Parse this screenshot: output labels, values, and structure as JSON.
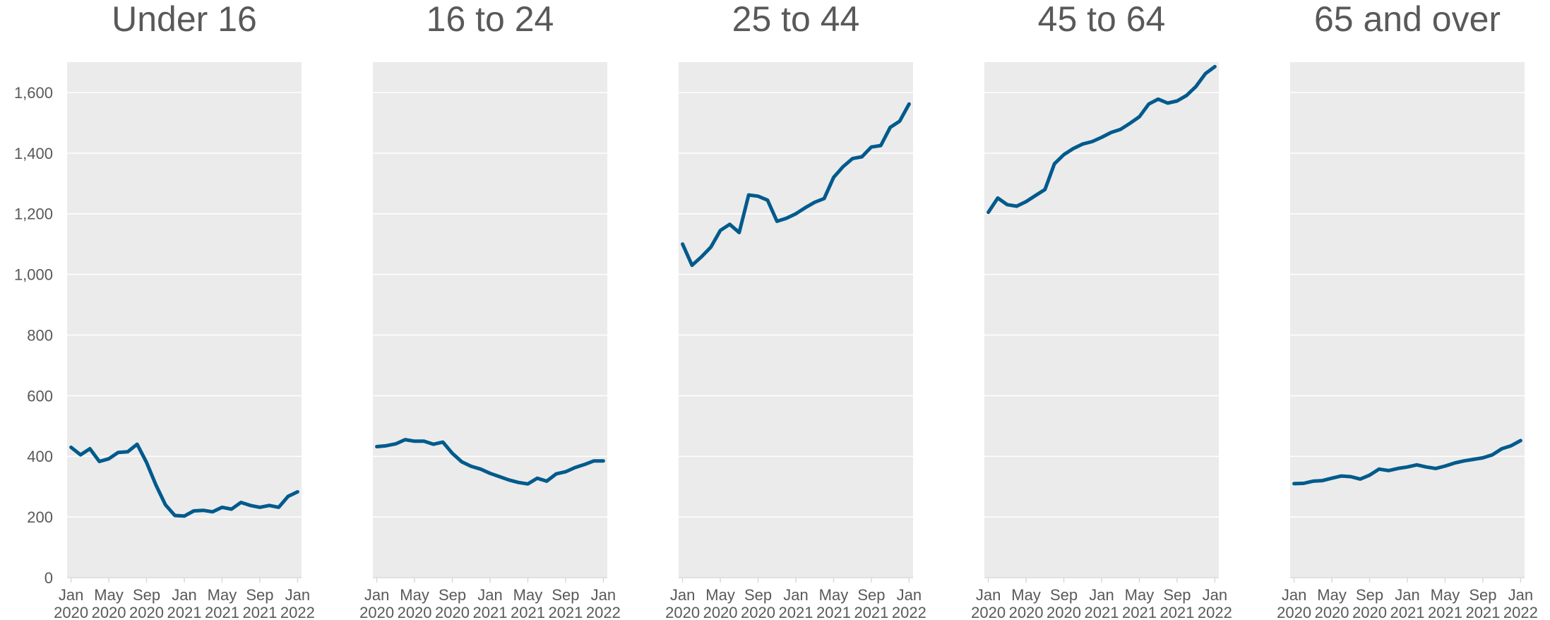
{
  "chart_data": [
    {
      "type": "line",
      "title": "Under 16",
      "categories": [
        "Jan 2020",
        null,
        null,
        null,
        "May 2020",
        null,
        null,
        null,
        "Sep 2020",
        null,
        null,
        null,
        "Jan 2021",
        null,
        null,
        null,
        "May 2021",
        null,
        null,
        null,
        "Sep 2021",
        null,
        null,
        null,
        "Jan 2022"
      ],
      "values": [
        430,
        405,
        425,
        383,
        392,
        413,
        415,
        440,
        380,
        305,
        240,
        205,
        203,
        220,
        222,
        217,
        232,
        226,
        248,
        238,
        232,
        238,
        232,
        268,
        283
      ],
      "color": "#005a8c",
      "ylim": [
        0,
        1700
      ],
      "yticks": [
        0,
        200,
        400,
        600,
        800,
        {
          "value": 1000,
          "label": "1,000"
        },
        {
          "value": 1200,
          "label": "1,200"
        },
        {
          "value": 1400,
          "label": "1,400"
        },
        {
          "value": 1600,
          "label": "1,600"
        }
      ],
      "grid": true
    },
    {
      "type": "line",
      "title": "16 to 24",
      "categories": [
        "Jan 2020",
        null,
        null,
        null,
        "May 2020",
        null,
        null,
        null,
        "Sep 2020",
        null,
        null,
        null,
        "Jan 2021",
        null,
        null,
        null,
        "May 2021",
        null,
        null,
        null,
        "Sep 2021",
        null,
        null,
        null,
        "Jan 2022"
      ],
      "values": [
        432,
        435,
        441,
        455,
        450,
        450,
        440,
        447,
        410,
        382,
        367,
        358,
        344,
        333,
        322,
        314,
        309,
        328,
        318,
        342,
        349,
        363,
        373,
        385,
        385
      ],
      "color": "#005a8c",
      "ylim": [
        0,
        1700
      ],
      "yticks": [
        0,
        200,
        400,
        600,
        800,
        1000,
        1200,
        1400,
        1600
      ],
      "grid": true
    },
    {
      "type": "line",
      "title": "25 to 44",
      "categories": [
        "Jan 2020",
        null,
        null,
        null,
        "May 2020",
        null,
        null,
        null,
        "Sep 2020",
        null,
        null,
        null,
        "Jan 2021",
        null,
        null,
        null,
        "May 2021",
        null,
        null,
        null,
        "Sep 2021",
        null,
        null,
        null,
        "Jan 2022"
      ],
      "values": [
        1100,
        1030,
        1058,
        1090,
        1145,
        1165,
        1138,
        1262,
        1258,
        1245,
        1175,
        1185,
        1200,
        1220,
        1238,
        1250,
        1320,
        1355,
        1382,
        1388,
        1420,
        1425,
        1485,
        1505,
        1562
      ],
      "color": "#005a8c",
      "ylim": [
        0,
        1700
      ],
      "yticks": [
        0,
        200,
        400,
        600,
        800,
        1000,
        1200,
        1400,
        1600
      ],
      "grid": true
    },
    {
      "type": "line",
      "title": "45 to 64",
      "categories": [
        "Jan 2020",
        null,
        null,
        null,
        "May 2020",
        null,
        null,
        null,
        "Sep 2020",
        null,
        null,
        null,
        "Jan 2021",
        null,
        null,
        null,
        "May 2021",
        null,
        null,
        null,
        "Sep 2021",
        null,
        null,
        null,
        "Jan 2022"
      ],
      "values": [
        1205,
        1252,
        1230,
        1225,
        1240,
        1260,
        1280,
        1365,
        1395,
        1415,
        1430,
        1438,
        1452,
        1468,
        1478,
        1498,
        1520,
        1562,
        1578,
        1565,
        1572,
        1590,
        1620,
        1662,
        1685
      ],
      "color": "#005a8c",
      "ylim": [
        0,
        1700
      ],
      "yticks": [
        0,
        200,
        400,
        600,
        800,
        1000,
        1200,
        1400,
        1600
      ],
      "grid": true
    },
    {
      "type": "line",
      "title": "65 and over",
      "categories": [
        "Jan 2020",
        null,
        null,
        null,
        "May 2020",
        null,
        null,
        null,
        "Sep 2020",
        null,
        null,
        null,
        "Jan 2021",
        null,
        null,
        null,
        "May 2021",
        null,
        null,
        null,
        "Sep 2021",
        null,
        null,
        null,
        "Jan 2022"
      ],
      "values": [
        310,
        311,
        318,
        320,
        328,
        335,
        333,
        325,
        338,
        358,
        353,
        360,
        365,
        372,
        365,
        360,
        368,
        378,
        385,
        390,
        395,
        405,
        425,
        435,
        452
      ],
      "color": "#005a8c",
      "ylim": [
        0,
        1700
      ],
      "yticks": [
        0,
        200,
        400,
        600,
        800,
        1000,
        1200,
        1400,
        1600
      ],
      "grid": true
    }
  ]
}
